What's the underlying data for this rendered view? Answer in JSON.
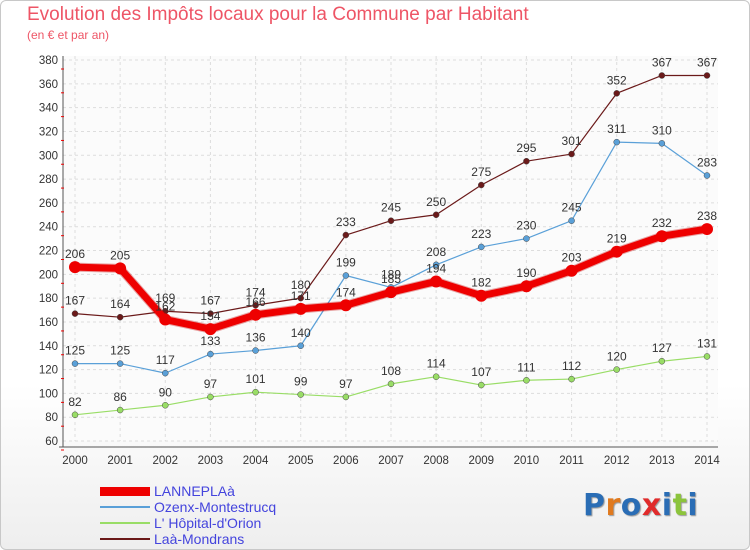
{
  "title": "Evolution des Impôts locaux pour la Commune par Habitant",
  "subtitle": "(en € et par an)",
  "logo": "Proxiti",
  "logo_colors": [
    "#2a6db5",
    "#e07a1f",
    "#2a6db5",
    "#e02b2b",
    "#2a6db5",
    "#8cc43c",
    "#2a6db5"
  ],
  "chart_data": {
    "type": "line",
    "x": [
      2000,
      2001,
      2002,
      2003,
      2004,
      2005,
      2006,
      2007,
      2008,
      2009,
      2010,
      2011,
      2012,
      2013,
      2014
    ],
    "ylim": [
      60,
      380
    ],
    "yticks": [
      60,
      80,
      100,
      120,
      140,
      160,
      180,
      200,
      220,
      240,
      260,
      280,
      300,
      320,
      340,
      360,
      380
    ],
    "grid": true,
    "legend_position": "bottom-left",
    "series": [
      {
        "name": "Laà-Mondrans",
        "color": "#6b1a1a",
        "width": 1.2,
        "values": [
          167,
          164,
          169,
          167,
          174,
          180,
          233,
          245,
          250,
          275,
          295,
          301,
          352,
          367,
          367
        ]
      },
      {
        "name": "Ozenx-Montestrucq",
        "color": "#5aa0d8",
        "width": 1.2,
        "values": [
          125,
          125,
          117,
          133,
          136,
          140,
          199,
          189,
          208,
          223,
          230,
          245,
          311,
          310,
          283
        ]
      },
      {
        "name": "L' Hôpital-d'Orion",
        "color": "#99dd66",
        "width": 1.2,
        "values": [
          82,
          86,
          90,
          97,
          101,
          99,
          97,
          108,
          114,
          107,
          111,
          112,
          120,
          127,
          131
        ]
      },
      {
        "name": "LANNEPLAà",
        "color": "#ee0000",
        "width": 7,
        "values": [
          206,
          205,
          162,
          154,
          166,
          171,
          174,
          185,
          194,
          182,
          190,
          203,
          219,
          232,
          238
        ]
      }
    ],
    "value_labels": {
      "Laà-Mondrans": [
        "167",
        "164",
        "169",
        "167",
        "174",
        "180",
        "233",
        "245",
        "250",
        "275",
        "295",
        "301",
        "352",
        "367",
        "367"
      ],
      "Ozenx-Montestrucq": [
        "125",
        "125",
        "117",
        "133",
        "136",
        "140",
        "199",
        "189",
        "208",
        "223",
        "230",
        "245",
        "311",
        "310",
        "283"
      ],
      "L' Hôpital-d'Orion": [
        "82",
        "86",
        "90",
        "97",
        "101",
        "99",
        "97",
        "108",
        "114",
        "107",
        "111",
        "112",
        "120",
        "127",
        "131"
      ],
      "LANNEPLAà": [
        "206",
        "205",
        "162",
        "154",
        "166",
        "171",
        "174",
        "185",
        "194",
        "182",
        "190",
        "203",
        "219",
        "232",
        "238"
      ]
    },
    "legend": [
      {
        "name": "LANNEPLAà",
        "color": "#ee0000",
        "thick": true
      },
      {
        "name": "Ozenx-Montestrucq",
        "color": "#5aa0d8",
        "thick": false
      },
      {
        "name": "L' Hôpital-d'Orion",
        "color": "#99dd66",
        "thick": false
      },
      {
        "name": "Laà-Mondrans",
        "color": "#6b1a1a",
        "thick": false
      }
    ]
  }
}
